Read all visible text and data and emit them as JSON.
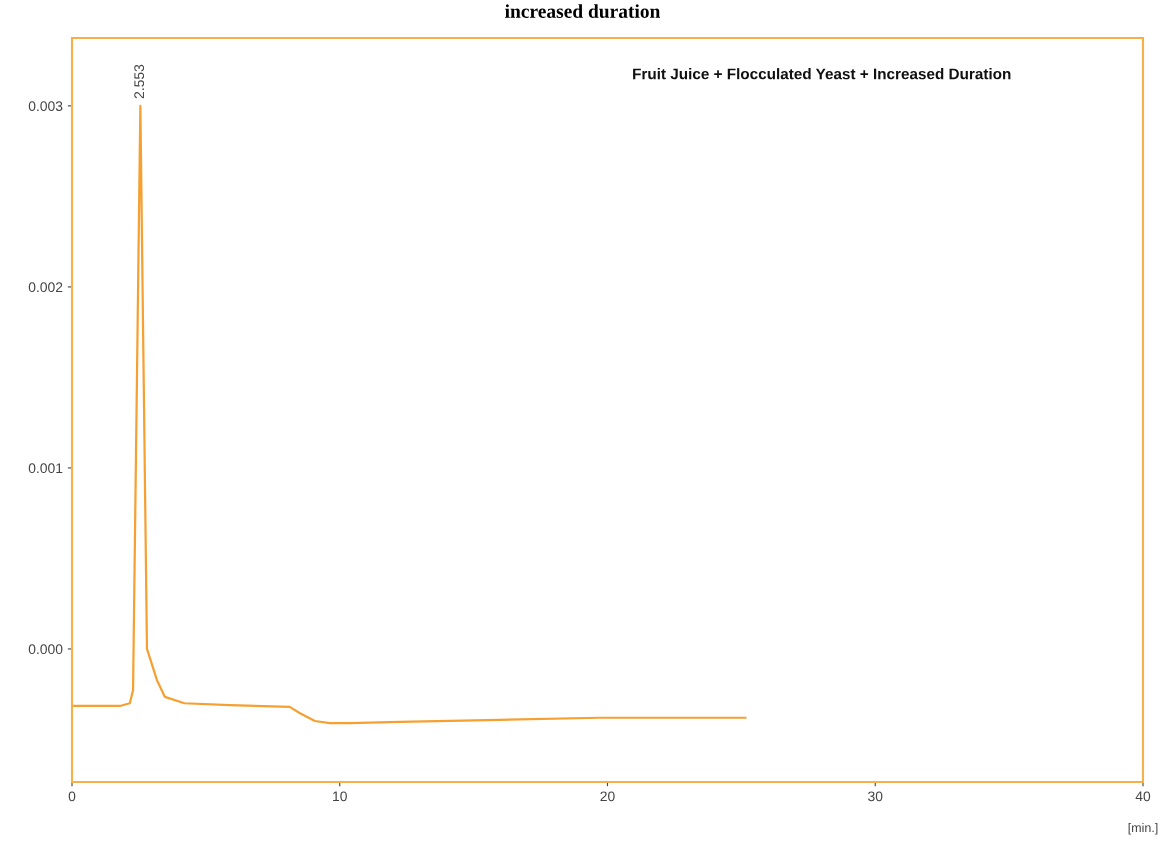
{
  "chart_data": {
    "type": "line",
    "title": "increased duration",
    "xlabel": "[min.]",
    "annotations": [
      "Fruit Juice + Flocculated Yeast + Increased Duration",
      {
        "text": "2.553",
        "x": 2.553,
        "y": 0.003
      }
    ],
    "x": [
      0,
      1.79,
      2.16,
      2.28,
      2.553,
      2.8,
      3.17,
      3.47,
      4.2,
      5.9,
      8.13,
      8.5,
      9.07,
      9.63,
      10.37,
      12.24,
      15.97,
      19.7,
      25.15
    ],
    "series": [
      {
        "color": "#f5a030",
        "values": [
          -0.000315,
          -0.000315,
          -0.0003,
          -0.000227,
          0.003,
          0.0,
          -0.000171,
          -0.000265,
          -0.0003,
          -0.00031,
          -0.00032,
          -0.000354,
          -0.000398,
          -0.00041,
          -0.00041,
          -0.000403,
          -0.000392,
          -0.00038,
          -0.00038
        ]
      }
    ],
    "xlim": [
      0,
      40
    ],
    "xticks": [
      0,
      10,
      20,
      30,
      40
    ],
    "ylim": [
      -0.000735,
      0.003375
    ],
    "yticks": [
      {
        "value": 0,
        "label": "0.000"
      },
      {
        "value": 0.001,
        "label": "0.001"
      },
      {
        "value": 0.002,
        "label": "0.002"
      },
      {
        "value": 0.003,
        "label": "0.003"
      }
    ],
    "grid": false,
    "marker": "none",
    "line_style": "solid"
  }
}
